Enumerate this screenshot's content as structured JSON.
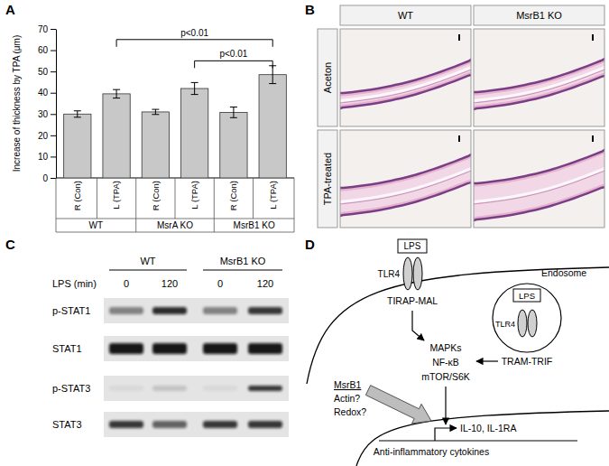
{
  "panel_labels": [
    "A",
    "B",
    "C",
    "D"
  ],
  "chart_data": {
    "type": "bar",
    "y_label": "Increase of thickness by TPA (μm)",
    "categories": [
      "R (Con)",
      "L (TPA)",
      "R (Con)",
      "L (TPA)",
      "R (Con)",
      "L (TPA)"
    ],
    "groups": [
      "WT",
      "MsrA KO",
      "MsrB1 KO"
    ],
    "values": [
      30,
      39.5,
      31,
      42,
      30.8,
      48.5
    ],
    "errors": [
      1.5,
      2,
      1.2,
      2.8,
      2.5,
      4.2
    ],
    "color": "#c8c8c8",
    "ylim": [
      0,
      70
    ],
    "yticks": [
      0,
      10,
      20,
      30,
      40,
      50,
      60,
      70
    ],
    "annotations": [
      {
        "text": "p<0.01",
        "from": 1,
        "to": 5,
        "y": 65
      },
      {
        "text": "p<0.01",
        "from": 3,
        "to": 5,
        "y": 55
      }
    ]
  },
  "histology": {
    "columns": [
      "WT",
      "MsrB1 KO"
    ],
    "rows": [
      "Aceton",
      "TPA-treated"
    ]
  },
  "western_blot": {
    "header": [
      "WT",
      "MsrB1 KO"
    ],
    "lps_label": "LPS (min)",
    "lps": [
      0,
      120,
      0,
      120
    ],
    "rows": [
      {
        "name": "p-STAT1",
        "band_intensity": [
          0.45,
          0.85,
          0.45,
          0.8
        ]
      },
      {
        "name": "STAT1",
        "band_intensity": [
          0.95,
          0.95,
          0.95,
          0.95
        ]
      },
      {
        "name": "p-STAT3",
        "band_intensity": [
          0.05,
          0.15,
          0.05,
          0.8
        ]
      },
      {
        "name": "STAT3",
        "band_intensity": [
          0.8,
          0.6,
          0.8,
          0.8
        ]
      }
    ]
  },
  "pathway": {
    "ligand": "LPS",
    "receptor": "TLR4",
    "adaptor": "TIRAP-MAL",
    "endosome": "Endosome",
    "endosome_ligand": "LPS",
    "endosome_receptor": "TLR4",
    "endosome_adaptor": "TRAM-TRIF",
    "signals": [
      "MAPKs",
      "NF-κB",
      "mTOR/S6K"
    ],
    "regulators": [
      "MsrB1",
      "Actin?",
      "Redox?"
    ],
    "genes": "IL-10, IL-1RA",
    "output": "Anti-inflammatory cytokines"
  }
}
